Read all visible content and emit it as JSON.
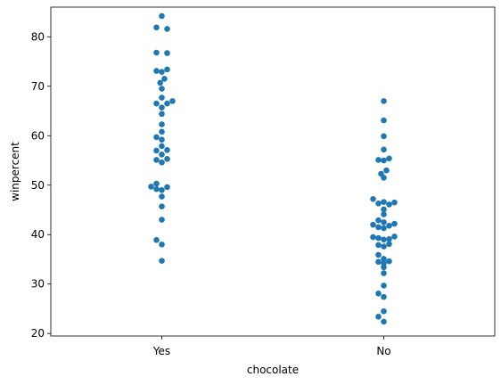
{
  "chart_data": {
    "type": "scatter",
    "style": "swarm",
    "xlabel": "chocolate",
    "ylabel": "winpercent",
    "categories": [
      "Yes",
      "No"
    ],
    "ylim": [
      19.5,
      86.0
    ],
    "yticks": [
      20,
      30,
      40,
      50,
      60,
      70,
      80
    ],
    "grid": false,
    "color": "#1f77b4",
    "series": [
      {
        "category": "Yes",
        "points": [
          {
            "x": "Yes",
            "dx": 0,
            "y": 84.2
          },
          {
            "x": "Yes",
            "dx": -1,
            "y": 81.9
          },
          {
            "x": "Yes",
            "dx": 1,
            "y": 81.6
          },
          {
            "x": "Yes",
            "dx": -1,
            "y": 76.8
          },
          {
            "x": "Yes",
            "dx": 1,
            "y": 76.7
          },
          {
            "x": "Yes",
            "dx": -1,
            "y": 73.1
          },
          {
            "x": "Yes",
            "dx": 0,
            "y": 72.9
          },
          {
            "x": "Yes",
            "dx": 1,
            "y": 73.4
          },
          {
            "x": "Yes",
            "dx": 0.5,
            "y": 71.5
          },
          {
            "x": "Yes",
            "dx": -0.3,
            "y": 70.7
          },
          {
            "x": "Yes",
            "dx": 0,
            "y": 69.5
          },
          {
            "x": "Yes",
            "dx": 0,
            "y": 67.7
          },
          {
            "x": "Yes",
            "dx": -1,
            "y": 66.5
          },
          {
            "x": "Yes",
            "dx": 1,
            "y": 66.5
          },
          {
            "x": "Yes",
            "dx": 2,
            "y": 67.0
          },
          {
            "x": "Yes",
            "dx": 0,
            "y": 65.7
          },
          {
            "x": "Yes",
            "dx": 0,
            "y": 64.4
          },
          {
            "x": "Yes",
            "dx": 0,
            "y": 62.3
          },
          {
            "x": "Yes",
            "dx": 0,
            "y": 60.8
          },
          {
            "x": "Yes",
            "dx": -1,
            "y": 59.7
          },
          {
            "x": "Yes",
            "dx": 0,
            "y": 59.2
          },
          {
            "x": "Yes",
            "dx": 0,
            "y": 57.9
          },
          {
            "x": "Yes",
            "dx": -1,
            "y": 57.0
          },
          {
            "x": "Yes",
            "dx": 1,
            "y": 57.1
          },
          {
            "x": "Yes",
            "dx": 0,
            "y": 56.2
          },
          {
            "x": "Yes",
            "dx": -1,
            "y": 55.1
          },
          {
            "x": "Yes",
            "dx": 1,
            "y": 55.3
          },
          {
            "x": "Yes",
            "dx": 0,
            "y": 54.6
          },
          {
            "x": "Yes",
            "dx": -1,
            "y": 50.3
          },
          {
            "x": "Yes",
            "dx": -2,
            "y": 49.7
          },
          {
            "x": "Yes",
            "dx": 1,
            "y": 49.6
          },
          {
            "x": "Yes",
            "dx": -1,
            "y": 49.2
          },
          {
            "x": "Yes",
            "dx": 0,
            "y": 49.0
          },
          {
            "x": "Yes",
            "dx": 0,
            "y": 47.7
          },
          {
            "x": "Yes",
            "dx": 0,
            "y": 45.7
          },
          {
            "x": "Yes",
            "dx": 0,
            "y": 43.0
          },
          {
            "x": "Yes",
            "dx": -1,
            "y": 38.9
          },
          {
            "x": "Yes",
            "dx": 0,
            "y": 38.0
          },
          {
            "x": "Yes",
            "dx": 0,
            "y": 34.7
          }
        ]
      },
      {
        "category": "No",
        "points": [
          {
            "x": "No",
            "dx": 0,
            "y": 67.0
          },
          {
            "x": "No",
            "dx": 0,
            "y": 63.1
          },
          {
            "x": "No",
            "dx": 0,
            "y": 59.9
          },
          {
            "x": "No",
            "dx": 0,
            "y": 57.2
          },
          {
            "x": "No",
            "dx": -1,
            "y": 55.1
          },
          {
            "x": "No",
            "dx": 0,
            "y": 55.0
          },
          {
            "x": "No",
            "dx": 1,
            "y": 55.4
          },
          {
            "x": "No",
            "dx": 0.5,
            "y": 53.0
          },
          {
            "x": "No",
            "dx": -0.5,
            "y": 52.3
          },
          {
            "x": "No",
            "dx": 0,
            "y": 51.5
          },
          {
            "x": "No",
            "dx": -2,
            "y": 47.2
          },
          {
            "x": "No",
            "dx": -1,
            "y": 46.3
          },
          {
            "x": "No",
            "dx": 0,
            "y": 46.6
          },
          {
            "x": "No",
            "dx": 1,
            "y": 46.1
          },
          {
            "x": "No",
            "dx": 2,
            "y": 46.5
          },
          {
            "x": "No",
            "dx": 0,
            "y": 45.1
          },
          {
            "x": "No",
            "dx": 0,
            "y": 44.1
          },
          {
            "x": "No",
            "dx": -1,
            "y": 42.9
          },
          {
            "x": "No",
            "dx": 0,
            "y": 42.5
          },
          {
            "x": "No",
            "dx": -2,
            "y": 42.0
          },
          {
            "x": "No",
            "dx": -1,
            "y": 41.5
          },
          {
            "x": "No",
            "dx": 0,
            "y": 41.3
          },
          {
            "x": "No",
            "dx": 1,
            "y": 41.8
          },
          {
            "x": "No",
            "dx": 2,
            "y": 42.2
          },
          {
            "x": "No",
            "dx": -2,
            "y": 39.5
          },
          {
            "x": "No",
            "dx": -1,
            "y": 39.3
          },
          {
            "x": "No",
            "dx": 0,
            "y": 39.0
          },
          {
            "x": "No",
            "dx": 1,
            "y": 39.1
          },
          {
            "x": "No",
            "dx": 2,
            "y": 39.6
          },
          {
            "x": "No",
            "dx": -1,
            "y": 37.9
          },
          {
            "x": "No",
            "dx": 0,
            "y": 37.6
          },
          {
            "x": "No",
            "dx": 1,
            "y": 38.1
          },
          {
            "x": "No",
            "dx": -1,
            "y": 35.9
          },
          {
            "x": "No",
            "dx": 0,
            "y": 35.1
          },
          {
            "x": "No",
            "dx": -1,
            "y": 34.5
          },
          {
            "x": "No",
            "dx": 0,
            "y": 34.2
          },
          {
            "x": "No",
            "dx": 1,
            "y": 34.6
          },
          {
            "x": "No",
            "dx": 0,
            "y": 33.4
          },
          {
            "x": "No",
            "dx": 0,
            "y": 32.2
          },
          {
            "x": "No",
            "dx": 0,
            "y": 29.7
          },
          {
            "x": "No",
            "dx": -1,
            "y": 28.1
          },
          {
            "x": "No",
            "dx": 0,
            "y": 27.4
          },
          {
            "x": "No",
            "dx": 0,
            "y": 24.5
          },
          {
            "x": "No",
            "dx": -1,
            "y": 23.4
          },
          {
            "x": "No",
            "dx": 0,
            "y": 22.4
          }
        ]
      }
    ]
  }
}
